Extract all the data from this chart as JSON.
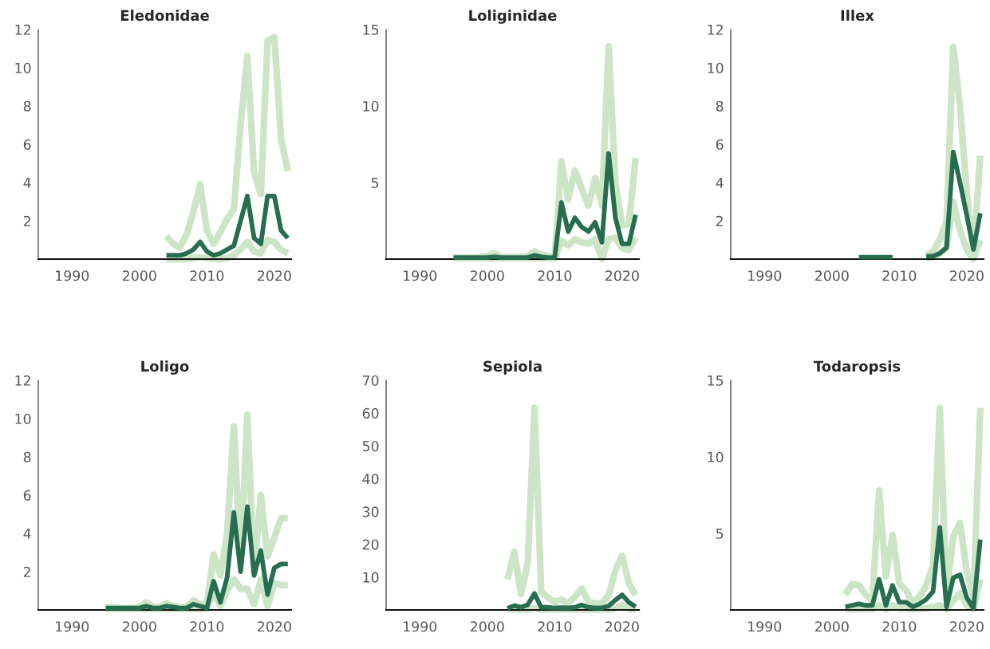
{
  "chart_data": [
    {
      "type": "line",
      "title": "Eledonidae",
      "x": [
        2004,
        2005,
        2006,
        2007,
        2008,
        2009,
        2010,
        2011,
        2012,
        2013,
        2014,
        2015,
        2016,
        2017,
        2018,
        2019,
        2020,
        2021,
        2022
      ],
      "xlim": [
        1985,
        2022.5
      ],
      "xticks": [
        1990,
        2000,
        2010,
        2020
      ],
      "ylim": [
        0,
        12
      ],
      "yticks": [
        2,
        4,
        6,
        8,
        10,
        12
      ],
      "series": [
        {
          "color": "#cde5c7",
          "values": [
            1.2,
            0.8,
            0.6,
            1.3,
            2.5,
            3.9,
            1.5,
            0.8,
            1.4,
            2.1,
            2.6,
            7.0,
            10.6,
            4.5,
            3.4,
            11.4,
            11.6,
            6.3,
            4.6
          ]
        },
        {
          "color": "#cde5c7",
          "values": [
            0,
            0,
            0,
            0,
            0.05,
            0.1,
            0.05,
            0,
            0,
            0.05,
            0.2,
            0.5,
            0.9,
            0.4,
            0.3,
            1.0,
            0.9,
            0.5,
            0.3
          ]
        },
        {
          "color": "#276e51",
          "values": [
            0.2,
            0.2,
            0.2,
            0.3,
            0.5,
            0.9,
            0.4,
            0.2,
            0.3,
            0.5,
            0.7,
            2.0,
            3.3,
            1.1,
            0.8,
            3.3,
            3.3,
            1.5,
            1.1
          ]
        }
      ]
    },
    {
      "type": "line",
      "title": "Loliginidae",
      "x": [
        1995,
        1996,
        1997,
        1998,
        1999,
        2000,
        2001,
        2002,
        2003,
        2004,
        2005,
        2006,
        2007,
        2008,
        2009,
        2010,
        2011,
        2012,
        2013,
        2014,
        2015,
        2016,
        2017,
        2018,
        2019,
        2020,
        2021,
        2022
      ],
      "xlim": [
        1985,
        2022.5
      ],
      "xticks": [
        1990,
        2000,
        2010,
        2020
      ],
      "ylim": [
        0,
        15
      ],
      "yticks": [
        5,
        10,
        15
      ],
      "series": [
        {
          "color": "#cde5c7",
          "values": [
            0.1,
            0.1,
            0.1,
            0.1,
            0.15,
            0.2,
            0.4,
            0.15,
            0.15,
            0.15,
            0.15,
            0.2,
            0.5,
            0.3,
            0.2,
            0.1,
            6.4,
            3.9,
            5.8,
            4.6,
            3.5,
            5.3,
            3.5,
            13.9,
            5.0,
            2.2,
            2.3,
            6.6
          ]
        },
        {
          "color": "#cde5c7",
          "values": [
            0.05,
            0.05,
            0.05,
            0.05,
            0.05,
            0.05,
            0.05,
            0.05,
            0.05,
            0.05,
            0.05,
            0.05,
            0.05,
            0.05,
            0.05,
            0.05,
            1.2,
            0.9,
            1.3,
            1.1,
            1.0,
            1.3,
            0.0,
            1.3,
            1.4,
            0.7,
            0.6,
            1.4
          ]
        },
        {
          "color": "#276e51",
          "values": [
            0.1,
            0.1,
            0.1,
            0.1,
            0.1,
            0.1,
            0.15,
            0.1,
            0.1,
            0.1,
            0.1,
            0.1,
            0.25,
            0.15,
            0.1,
            0.1,
            3.7,
            1.8,
            2.7,
            2.1,
            1.8,
            2.4,
            1.1,
            6.9,
            2.7,
            1.0,
            1.0,
            2.9
          ]
        }
      ]
    },
    {
      "type": "line",
      "title": "Illex",
      "x": [
        2004,
        2005,
        2006,
        2007,
        2008,
        2009,
        2010,
        2011,
        2012,
        2013,
        2014,
        2015,
        2016,
        2017,
        2018,
        2019,
        2020,
        2021,
        2022
      ],
      "xlim": [
        1985,
        2022.5
      ],
      "xticks": [
        1990,
        2000,
        2010,
        2020
      ],
      "ylim": [
        0,
        12
      ],
      "yticks": [
        2,
        4,
        6,
        8,
        10,
        12
      ],
      "series": [
        {
          "color": "#cde5c7",
          "values": [
            null,
            null,
            null,
            null,
            null,
            null,
            null,
            null,
            null,
            null,
            0.2,
            0.4,
            1.0,
            2.0,
            11.1,
            8.0,
            3.5,
            0.2,
            5.4
          ]
        },
        {
          "color": "#cde5c7",
          "values": [
            null,
            null,
            null,
            null,
            null,
            null,
            null,
            null,
            null,
            null,
            0.05,
            0.1,
            0.3,
            0.6,
            3.0,
            1.5,
            0.5,
            0.0,
            1.0
          ]
        },
        {
          "color": "#276e51",
          "values": [
            0.1,
            0.1,
            0.1,
            0.1,
            0.1,
            0.1,
            null,
            null,
            null,
            null,
            0.15,
            0.15,
            0.3,
            0.6,
            5.6,
            4.0,
            2.3,
            0.5,
            2.4
          ]
        }
      ]
    },
    {
      "type": "line",
      "title": "Loligo",
      "x": [
        1995,
        1996,
        1997,
        1998,
        1999,
        2000,
        2001,
        2002,
        2003,
        2004,
        2005,
        2006,
        2007,
        2008,
        2009,
        2010,
        2011,
        2012,
        2013,
        2014,
        2015,
        2016,
        2017,
        2018,
        2019,
        2020,
        2021,
        2022
      ],
      "xlim": [
        1985,
        2022.5
      ],
      "xticks": [
        1990,
        2000,
        2010,
        2020
      ],
      "ylim": [
        0,
        12
      ],
      "yticks": [
        2,
        4,
        6,
        8,
        10,
        12
      ],
      "series": [
        {
          "color": "#cde5c7",
          "values": [
            0.15,
            0.15,
            0.1,
            0.1,
            0.1,
            0.15,
            0.4,
            0.15,
            0.15,
            0.35,
            0.2,
            0.15,
            0.15,
            0.5,
            0.3,
            0.3,
            2.9,
            1.8,
            4.0,
            9.6,
            2.5,
            10.2,
            2.0,
            6.0,
            2.8,
            3.8,
            4.8,
            4.8
          ]
        },
        {
          "color": "#cde5c7",
          "values": [
            0.05,
            0.05,
            0.05,
            0.05,
            0.05,
            0.05,
            0.05,
            0.05,
            0.05,
            0.05,
            0.05,
            0.05,
            0.05,
            0.05,
            0.05,
            0.05,
            1.0,
            0.2,
            1.0,
            1.6,
            1.1,
            1.1,
            0.3,
            1.6,
            0.2,
            1.4,
            1.3,
            1.3
          ]
        },
        {
          "color": "#276e51",
          "values": [
            0.1,
            0.1,
            0.1,
            0.1,
            0.1,
            0.1,
            0.2,
            0.1,
            0.1,
            0.2,
            0.15,
            0.1,
            0.1,
            0.3,
            0.2,
            0.1,
            1.5,
            0.4,
            1.7,
            5.1,
            2.0,
            5.4,
            1.8,
            3.1,
            0.8,
            2.2,
            2.4,
            2.4
          ]
        }
      ]
    },
    {
      "type": "line",
      "title": "Sepiola",
      "x": [
        2003,
        2004,
        2005,
        2006,
        2007,
        2008,
        2009,
        2010,
        2011,
        2012,
        2013,
        2014,
        2015,
        2016,
        2017,
        2018,
        2019,
        2020,
        2021,
        2022
      ],
      "xlim": [
        1985,
        2022.5
      ],
      "xticks": [
        1990,
        2000,
        2010,
        2020
      ],
      "ylim": [
        0,
        70
      ],
      "yticks": [
        10,
        20,
        30,
        40,
        50,
        60,
        70
      ],
      "series": [
        {
          "color": "#cde5c7",
          "values": [
            9.3,
            17.8,
            4.8,
            14.2,
            61.6,
            5.6,
            3.8,
            2.4,
            3.2,
            2.0,
            4.0,
            6.5,
            2.5,
            2.0,
            2.0,
            4.5,
            12.1,
            16.6,
            8.1,
            4.5
          ]
        },
        {
          "color": "#cde5c7",
          "values": [
            0.1,
            0.2,
            0.1,
            0.1,
            0.5,
            0.1,
            0.1,
            0.1,
            0.1,
            0.1,
            0.1,
            0.1,
            0.1,
            0.1,
            0.1,
            0.1,
            0.5,
            1.5,
            0.3,
            0.1
          ]
        },
        {
          "color": "#276e51",
          "values": [
            0.5,
            1.3,
            0.8,
            1.6,
            5.0,
            0.8,
            0.8,
            0.6,
            0.7,
            0.6,
            0.8,
            1.5,
            0.8,
            0.6,
            0.6,
            1.2,
            3.0,
            4.6,
            2.3,
            1.0
          ]
        }
      ]
    },
    {
      "type": "line",
      "title": "Todaropsis",
      "x": [
        2002,
        2003,
        2004,
        2005,
        2006,
        2007,
        2008,
        2009,
        2010,
        2011,
        2012,
        2013,
        2014,
        2015,
        2016,
        2017,
        2018,
        2019,
        2020,
        2021,
        2022
      ],
      "xlim": [
        1985,
        2022.5
      ],
      "xticks": [
        1990,
        2000,
        2010,
        2020
      ],
      "ylim": [
        0,
        15
      ],
      "yticks": [
        5,
        10,
        15
      ],
      "series": [
        {
          "color": "#cde5c7",
          "values": [
            1.0,
            1.7,
            1.6,
            1.0,
            0.6,
            7.8,
            2.2,
            4.9,
            1.7,
            1.3,
            0.4,
            0.9,
            1.6,
            2.9,
            13.2,
            1.0,
            4.8,
            5.7,
            2.5,
            0.8,
            13.2
          ]
        },
        {
          "color": "#cde5c7",
          "values": [
            0.05,
            0.05,
            0.05,
            0.05,
            0.05,
            0.3,
            0.05,
            0.3,
            0.1,
            0.1,
            0.05,
            0.05,
            0.1,
            0.2,
            0.3,
            0.05,
            0.6,
            1.1,
            0.3,
            0.05,
            2.0
          ]
        },
        {
          "color": "#276e51",
          "values": [
            0.2,
            0.3,
            0.4,
            0.3,
            0.3,
            2.0,
            0.3,
            1.6,
            0.5,
            0.5,
            0.2,
            0.4,
            0.7,
            1.2,
            5.4,
            0.2,
            2.1,
            2.3,
            0.8,
            0.1,
            4.6
          ]
        }
      ]
    }
  ]
}
